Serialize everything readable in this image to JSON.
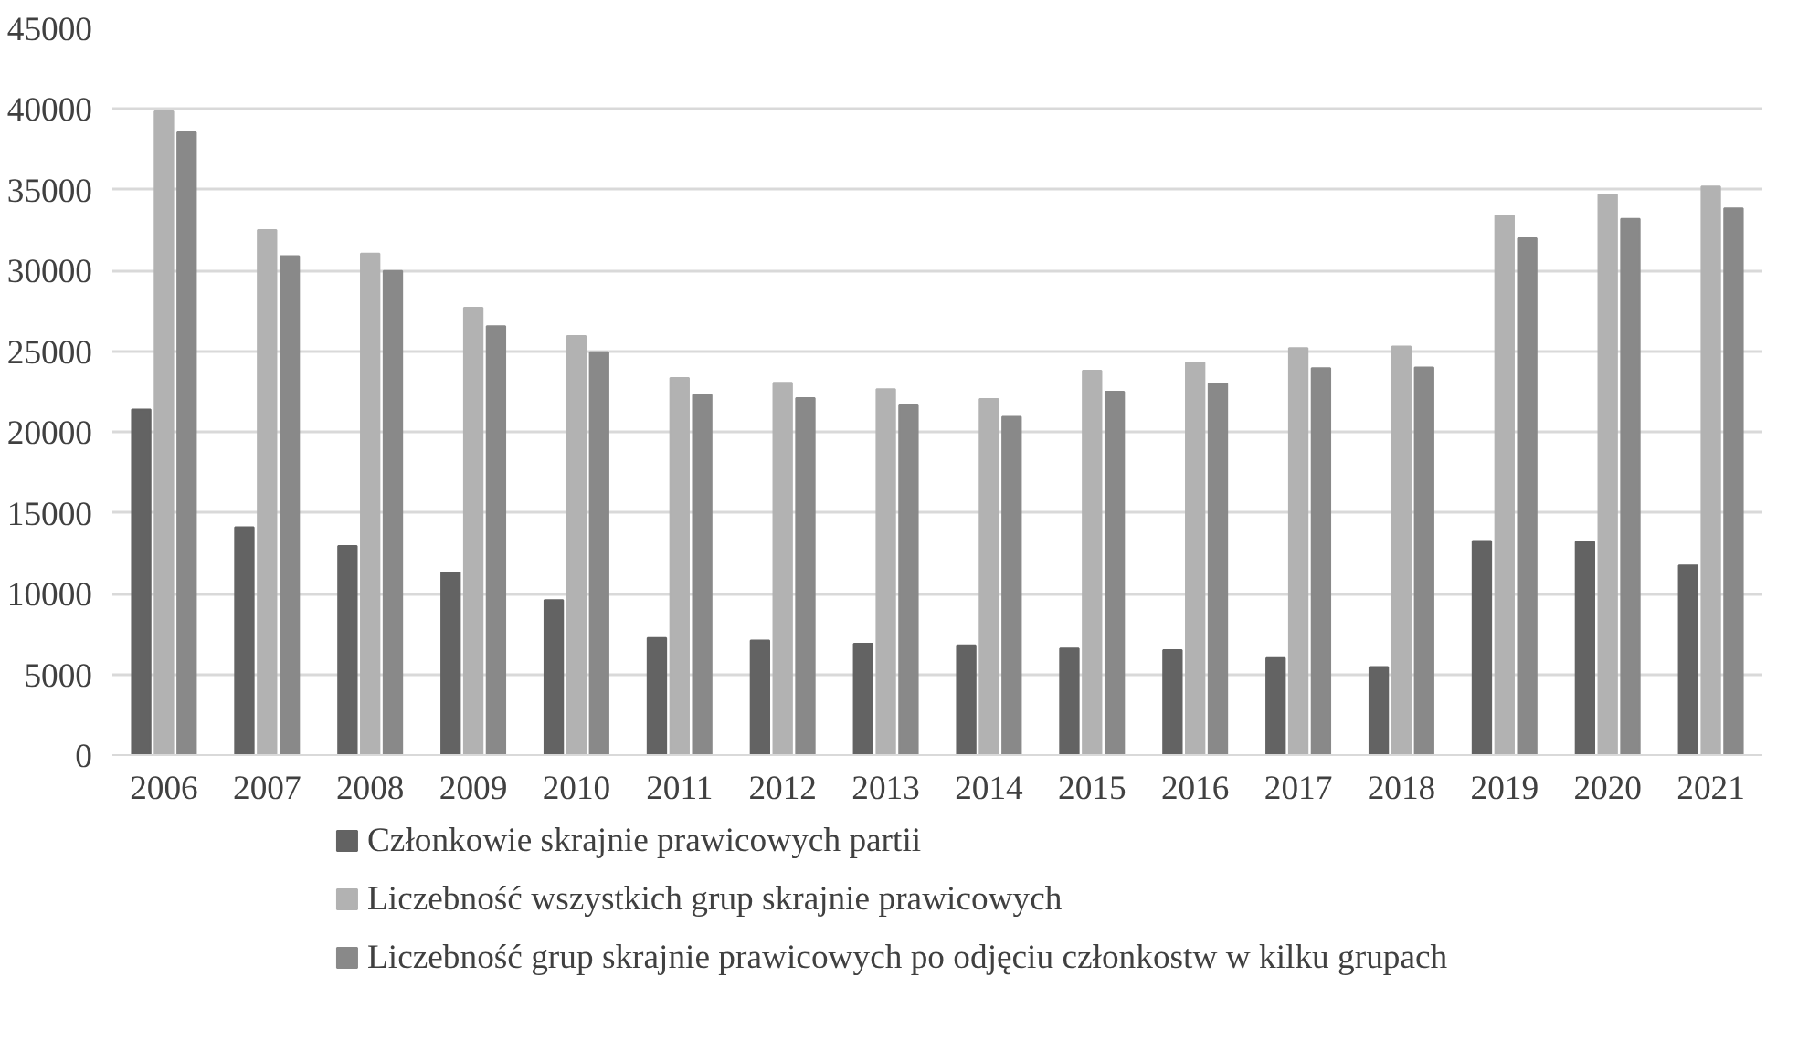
{
  "chart_data": {
    "type": "bar",
    "categories": [
      "2006",
      "2007",
      "2008",
      "2009",
      "2010",
      "2011",
      "2012",
      "2013",
      "2014",
      "2015",
      "2016",
      "2017",
      "2018",
      "2019",
      "2020",
      "2021"
    ],
    "series": [
      {
        "name": "Członkowie skrajnie prawicowych partii",
        "color": "#636363",
        "values": [
          21400,
          14100,
          12950,
          11300,
          9600,
          7250,
          7100,
          6900,
          6800,
          6600,
          6500,
          6000,
          5450,
          13250,
          13200,
          11750
        ]
      },
      {
        "name": "Liczebność wszystkich grup skrajnie prawicowych",
        "color": "#b2b2b2",
        "values": [
          39850,
          32500,
          31050,
          27700,
          25950,
          23350,
          23050,
          22650,
          22050,
          23800,
          24300,
          25200,
          25300,
          33400,
          34700,
          35200
        ]
      },
      {
        "name": "Liczebność grup skrajnie prawicowych po odjęciu członkostw w kilku grupach",
        "color": "#898989",
        "values": [
          38550,
          30900,
          29970,
          26550,
          24950,
          22300,
          22100,
          21650,
          20950,
          22500,
          23000,
          23950,
          24000,
          32000,
          33200,
          33850
        ]
      }
    ],
    "ylim": [
      0,
      45000
    ],
    "yticks": [
      0,
      5000,
      10000,
      15000,
      20000,
      25000,
      30000,
      35000,
      40000,
      45000
    ],
    "grid": "y",
    "legend": "bottom"
  }
}
